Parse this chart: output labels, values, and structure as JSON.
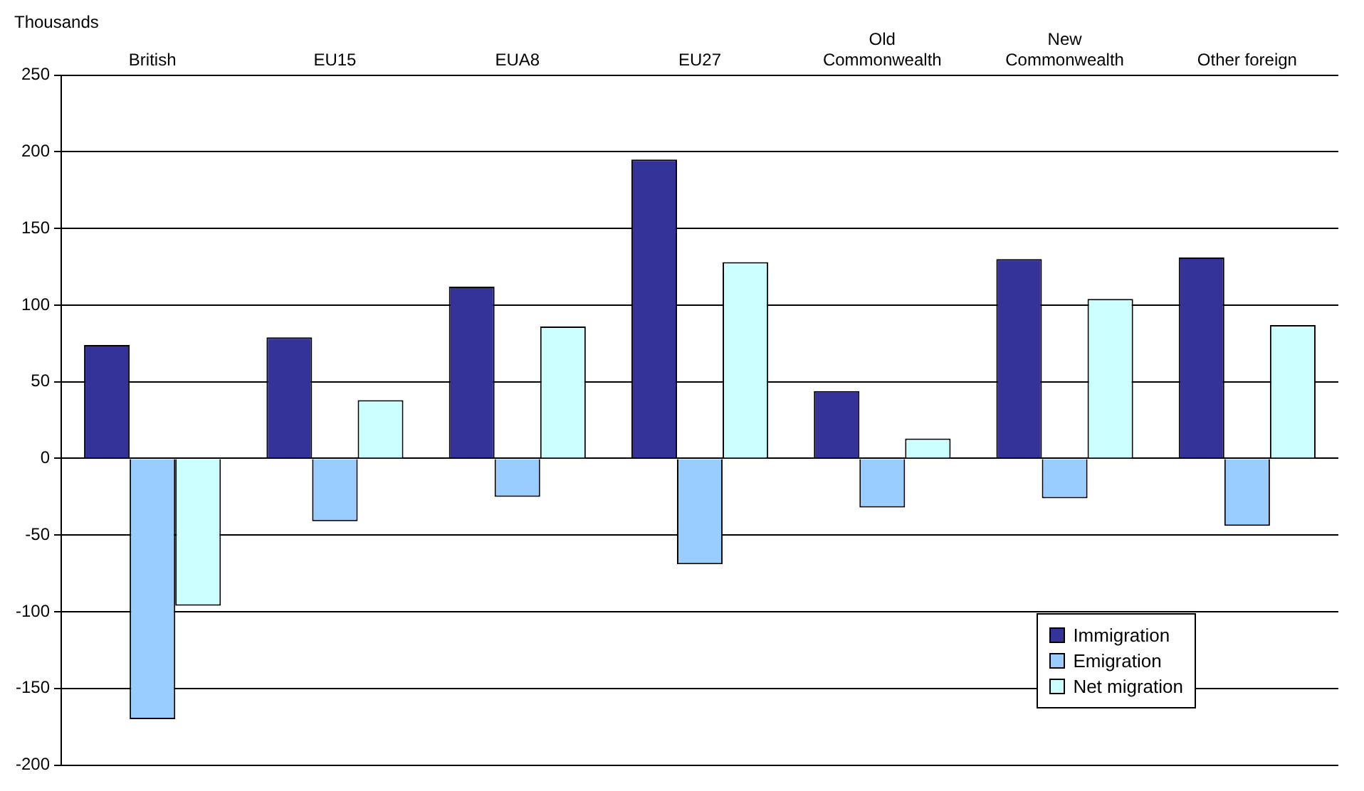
{
  "chart_data": {
    "type": "bar",
    "ylabel": "Thousands",
    "categories": [
      "British",
      "EU15",
      "EUA8",
      "EU27",
      "Old Commonwealth",
      "New Commonwealth",
      "Other foreign"
    ],
    "series": [
      {
        "name": "Immigration",
        "color": "#333399",
        "values": [
          74,
          79,
          112,
          195,
          44,
          130,
          131
        ]
      },
      {
        "name": "Emigration",
        "color": "#99ccff",
        "values": [
          -170,
          -41,
          -25,
          -69,
          -32,
          -26,
          -44
        ]
      },
      {
        "name": "Net migration",
        "color": "#ccffff",
        "values": [
          -96,
          38,
          86,
          128,
          13,
          104,
          87
        ]
      }
    ],
    "ylim": [
      -200,
      250
    ],
    "yticks": [
      -200,
      -150,
      -100,
      -50,
      0,
      50,
      100,
      150,
      200,
      250
    ],
    "grid": "y",
    "legend": "bottom right"
  }
}
